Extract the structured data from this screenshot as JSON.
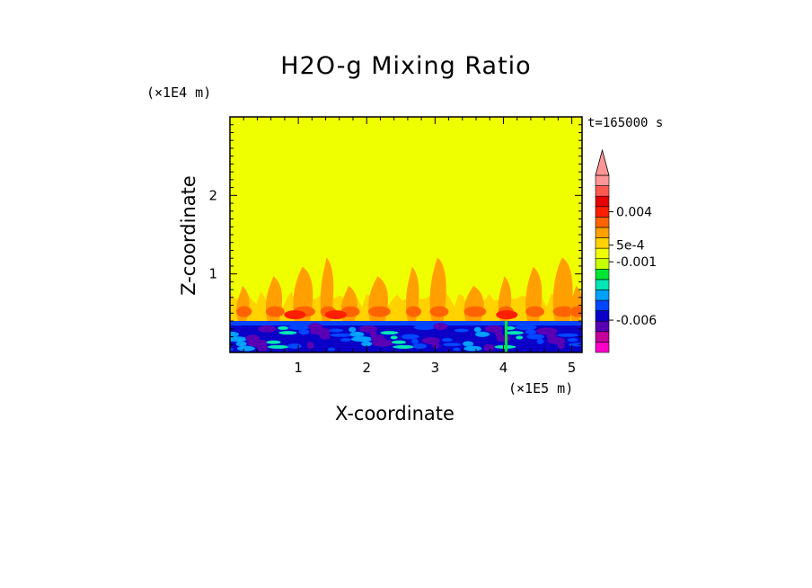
{
  "chart_data": {
    "type": "heatmap",
    "title": "H2O-g Mixing Ratio",
    "xlabel": "X-coordinate",
    "ylabel": "Z-coordinate",
    "x_unit_label": "(×1E5 m)",
    "y_unit_label": "(×1E4 m)",
    "time_label": "t=165000 s",
    "x_range": [
      0,
      5.15
    ],
    "y_range": [
      0,
      3
    ],
    "x_ticks": [
      "1",
      "2",
      "3",
      "4",
      "5"
    ],
    "y_ticks": [
      "1",
      "2"
    ],
    "colorbar": {
      "labels": [
        "0.004",
        "5e-4",
        "-0.001",
        "-0.006"
      ],
      "colors": [
        "#ff00c8",
        "#c8009b",
        "#5a00b4",
        "#0a00c8",
        "#0046ff",
        "#00a0ff",
        "#00e6b4",
        "#00e632",
        "#c8ff00",
        "#f0ff00",
        "#ffd200",
        "#ffa000",
        "#ff6400",
        "#ff1e00",
        "#e60000",
        "#ff5a50",
        "#ff9696"
      ]
    },
    "regions": {
      "upper_value": "5e-4",
      "plume_layer_top_z": 1.0,
      "base_layer_top_z": 0.4
    }
  }
}
